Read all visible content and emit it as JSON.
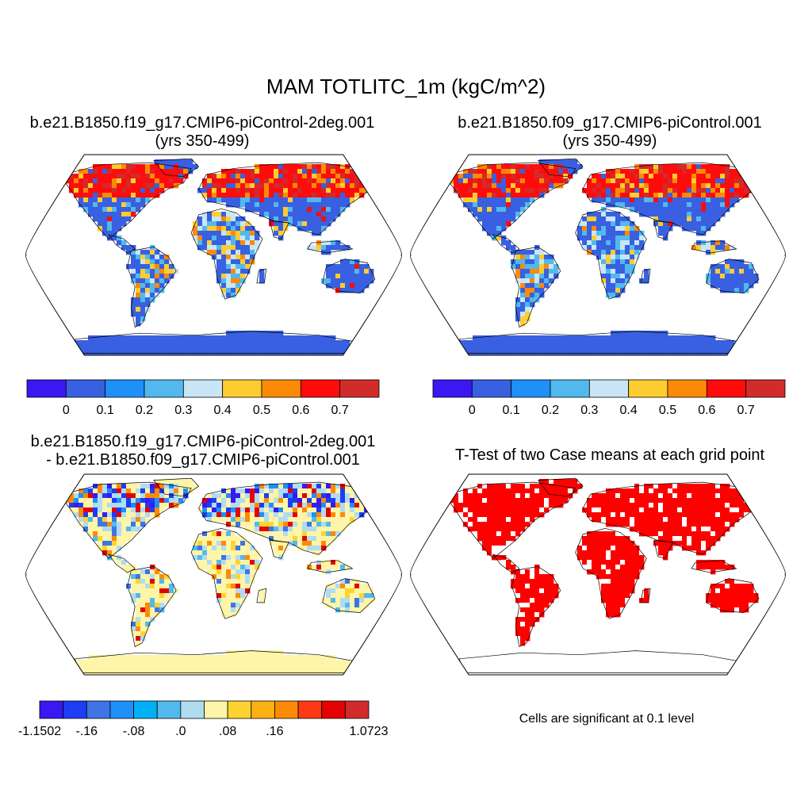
{
  "title": "MAM TOTLITC_1m (kgC/m^2)",
  "panels": [
    {
      "id": "p1",
      "title_line1": "b.e21.B1850.f19_g17.CMIP6-piControl-2deg.001",
      "title_line2": "(yrs 350-499)"
    },
    {
      "id": "p2",
      "title_line1": "b.e21.B1850.f09_g17.CMIP6-piControl.001",
      "title_line2": "(yrs 350-499)"
    },
    {
      "id": "p3",
      "title_line1": "b.e21.B1850.f19_g17.CMIP6-piControl-2deg.001",
      "title_line2": "- b.e21.B1850.f09_g17.CMIP6-piControl.001"
    },
    {
      "id": "p4",
      "title_line1": "T-Test of two Case means at each grid point",
      "title_line2": ""
    }
  ],
  "significance_note": "Cells are significant at 0.1 level",
  "colorbar_case": {
    "colors": [
      "#3a18f2",
      "#3860e0",
      "#1e90f8",
      "#52b9ee",
      "#c8e6f6",
      "#fccd30",
      "#fd8a07",
      "#fe0c0c",
      "#d22b2b"
    ],
    "labels": [
      "0",
      "0.1",
      "0.2",
      "0.3",
      "0.4",
      "0.5",
      "0.6",
      "0.7"
    ]
  },
  "colorbar_diff": {
    "colors": [
      "#3a18f2",
      "#1e3cf4",
      "#3f74e6",
      "#1e90f8",
      "#00b1f6",
      "#52b9ee",
      "#b0dcf2",
      "#fff5a8",
      "#fdd42f",
      "#fcb012",
      "#fd8a07",
      "#fe3a16",
      "#e40202",
      "#d22b2b"
    ],
    "labels": [
      "-1.1502",
      "-.16",
      "-.08",
      ".0",
      ".08",
      ".16",
      "1.0723"
    ]
  },
  "colors": {
    "ocean": "#ffffff",
    "case_land_base": "#3860e0",
    "diff_land_base": "#fff5a8",
    "ttest_significant": "#fe0000",
    "ice": "#3860e0"
  }
}
